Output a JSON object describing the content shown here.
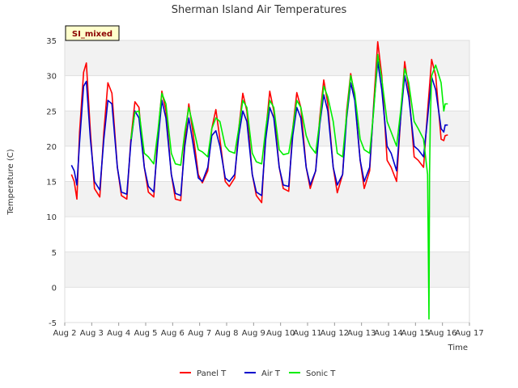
{
  "chart_data": {
    "type": "line",
    "title": "Sherman Island Air Temperatures",
    "xlabel": "Time",
    "ylabel": "Temperature (C)",
    "xlim": [
      2,
      17
    ],
    "ylim": [
      -5,
      35
    ],
    "x_ticks": [
      2,
      3,
      4,
      5,
      6,
      7,
      8,
      9,
      10,
      11,
      12,
      13,
      14,
      15,
      16,
      17
    ],
    "x_tick_labels": [
      "Aug 2",
      "Aug 3",
      "Aug 4",
      "Aug 5",
      "Aug 6",
      "Aug 7",
      "Aug 8",
      "Aug 9",
      "Aug 10",
      "Aug 11",
      "Aug 12",
      "Aug 13",
      "Aug 14",
      "Aug 15",
      "Aug 16",
      "Aug 17"
    ],
    "y_ticks": [
      -5,
      0,
      5,
      10,
      15,
      20,
      25,
      30,
      35
    ],
    "y_tick_labels": [
      "-5",
      "0",
      "5",
      "10",
      "15",
      "20",
      "25",
      "30",
      "35"
    ],
    "grid": true,
    "legend_position": "bottom",
    "annotation": "SI_mixed",
    "series": [
      {
        "name": "Panel T",
        "color": "#ff0000",
        "x": [
          2.25,
          2.35,
          2.45,
          2.55,
          2.7,
          2.8,
          2.95,
          3.1,
          3.3,
          3.45,
          3.6,
          3.75,
          3.95,
          4.1,
          4.3,
          4.45,
          4.6,
          4.75,
          4.95,
          5.1,
          5.3,
          5.45,
          5.6,
          5.75,
          5.95,
          6.1,
          6.3,
          6.45,
          6.6,
          6.75,
          6.95,
          7.1,
          7.3,
          7.45,
          7.6,
          7.75,
          7.95,
          8.1,
          8.3,
          8.45,
          8.6,
          8.75,
          8.95,
          9.1,
          9.3,
          9.45,
          9.6,
          9.75,
          9.95,
          10.1,
          10.3,
          10.45,
          10.6,
          10.75,
          10.95,
          11.1,
          11.3,
          11.45,
          11.6,
          11.75,
          11.95,
          12.1,
          12.3,
          12.45,
          12.6,
          12.75,
          12.95,
          13.1,
          13.3,
          13.45,
          13.6,
          13.75,
          13.95,
          14.1,
          14.3,
          14.45,
          14.6,
          14.75,
          14.95,
          15.1,
          15.3,
          15.45,
          15.55,
          15.6,
          15.75,
          15.95,
          16.05,
          16.1,
          16.2
        ],
        "y": [
          16.0,
          15.0,
          12.5,
          22.0,
          30.5,
          31.8,
          22.0,
          14.0,
          12.8,
          22.0,
          29.0,
          27.5,
          17.0,
          13.0,
          12.5,
          21.0,
          26.3,
          25.5,
          17.0,
          13.5,
          12.8,
          21.5,
          27.8,
          25.0,
          16.0,
          12.5,
          12.3,
          21.0,
          26.0,
          22.0,
          16.0,
          14.8,
          16.5,
          22.5,
          25.2,
          21.0,
          15.0,
          14.3,
          15.5,
          22.5,
          27.5,
          25.0,
          16.0,
          13.0,
          12.0,
          22.0,
          27.8,
          25.0,
          17.0,
          14.0,
          13.6,
          22.5,
          27.6,
          25.5,
          17.0,
          14.0,
          16.5,
          24.0,
          29.4,
          26.0,
          17.0,
          13.4,
          16.0,
          25.0,
          30.3,
          27.0,
          18.0,
          14.0,
          16.5,
          26.0,
          34.8,
          30.0,
          18.0,
          17.0,
          15.0,
          24.0,
          32.0,
          28.0,
          18.5,
          18.0,
          17.0,
          25.0,
          30.0,
          32.3,
          30.0,
          21.0,
          20.8,
          21.5,
          21.6
        ]
      },
      {
        "name": "Air T",
        "color": "#0000cc",
        "x": [
          2.25,
          2.35,
          2.45,
          2.55,
          2.7,
          2.8,
          2.95,
          3.1,
          3.3,
          3.45,
          3.6,
          3.75,
          3.95,
          4.1,
          4.3,
          4.45,
          4.6,
          4.75,
          4.95,
          5.1,
          5.3,
          5.45,
          5.6,
          5.75,
          5.95,
          6.1,
          6.3,
          6.45,
          6.6,
          6.75,
          6.95,
          7.1,
          7.3,
          7.45,
          7.6,
          7.75,
          7.95,
          8.1,
          8.3,
          8.45,
          8.6,
          8.75,
          8.95,
          9.1,
          9.3,
          9.45,
          9.6,
          9.75,
          9.95,
          10.1,
          10.3,
          10.45,
          10.6,
          10.75,
          10.95,
          11.1,
          11.3,
          11.45,
          11.6,
          11.75,
          11.95,
          12.1,
          12.3,
          12.45,
          12.6,
          12.75,
          12.95,
          13.1,
          13.3,
          13.45,
          13.6,
          13.75,
          13.95,
          14.1,
          14.3,
          14.45,
          14.6,
          14.75,
          14.95,
          15.1,
          15.3,
          15.45,
          15.55,
          15.6,
          15.75,
          15.95,
          16.05,
          16.1,
          16.2
        ],
        "y": [
          17.3,
          16.5,
          14.5,
          20.5,
          28.5,
          29.2,
          21.0,
          15.0,
          13.8,
          21.0,
          26.5,
          26.0,
          17.0,
          13.5,
          13.2,
          20.5,
          25.0,
          24.0,
          17.0,
          14.3,
          13.5,
          20.5,
          26.5,
          24.0,
          16.0,
          13.3,
          13.0,
          20.0,
          24.0,
          20.5,
          15.5,
          15.0,
          17.0,
          21.5,
          22.2,
          20.0,
          15.5,
          15.0,
          16.0,
          21.5,
          25.0,
          23.5,
          16.0,
          13.5,
          13.0,
          21.0,
          25.5,
          24.0,
          17.0,
          14.5,
          14.3,
          21.5,
          25.5,
          24.0,
          17.0,
          14.5,
          16.5,
          23.0,
          27.3,
          25.0,
          17.0,
          14.5,
          16.0,
          24.0,
          29.0,
          26.5,
          18.0,
          15.0,
          17.0,
          25.5,
          32.0,
          28.0,
          20.0,
          19.0,
          16.5,
          24.0,
          30.0,
          27.0,
          20.0,
          19.5,
          18.5,
          24.0,
          28.0,
          29.8,
          28.0,
          22.5,
          22.0,
          23.0,
          23.0
        ]
      },
      {
        "name": "Sonic T",
        "color": "#00ee00",
        "x": [
          4.45,
          4.6,
          4.75,
          4.95,
          5.1,
          5.3,
          5.45,
          5.6,
          5.75,
          5.95,
          6.1,
          6.3,
          6.45,
          6.6,
          6.75,
          6.95,
          7.1,
          7.3,
          7.45,
          7.6,
          7.75,
          7.95,
          8.1,
          8.3,
          8.45,
          8.6,
          8.75,
          8.95,
          9.1,
          9.3,
          9.45,
          9.6,
          9.75,
          9.95,
          10.1,
          10.3,
          10.45,
          10.6,
          10.75,
          10.95,
          11.1,
          11.3,
          11.45,
          11.6,
          11.75,
          11.95,
          12.1,
          12.3,
          12.45,
          12.6,
          12.75,
          12.95,
          13.1,
          13.3,
          13.45,
          13.6,
          13.75,
          13.95,
          14.1,
          14.3,
          14.45,
          14.6,
          14.75,
          14.95,
          15.1,
          15.3,
          15.45,
          15.5,
          15.52,
          15.55,
          15.6,
          15.75,
          15.95,
          16.05,
          16.1,
          16.2
        ],
        "y": [
          21.0,
          24.8,
          25.0,
          19.0,
          18.5,
          17.5,
          22.0,
          27.5,
          26.0,
          19.0,
          17.5,
          17.3,
          22.0,
          25.5,
          23.0,
          19.5,
          19.2,
          18.5,
          22.5,
          24.0,
          23.5,
          20.0,
          19.3,
          19.0,
          22.5,
          26.5,
          25.5,
          19.0,
          17.8,
          17.5,
          22.5,
          26.5,
          25.5,
          19.5,
          18.8,
          19.0,
          22.5,
          26.5,
          25.5,
          21.5,
          20.0,
          19.0,
          23.5,
          28.5,
          27.0,
          23.5,
          19.0,
          18.5,
          24.5,
          30.0,
          27.5,
          21.0,
          19.5,
          19.0,
          25.0,
          33.0,
          29.5,
          23.5,
          22.0,
          20.0,
          25.0,
          31.0,
          29.0,
          23.5,
          22.5,
          21.0,
          16.0,
          -4.5,
          16.0,
          24.0,
          30.0,
          31.5,
          29.0,
          25.0,
          26.0,
          26.0
        ]
      }
    ]
  }
}
